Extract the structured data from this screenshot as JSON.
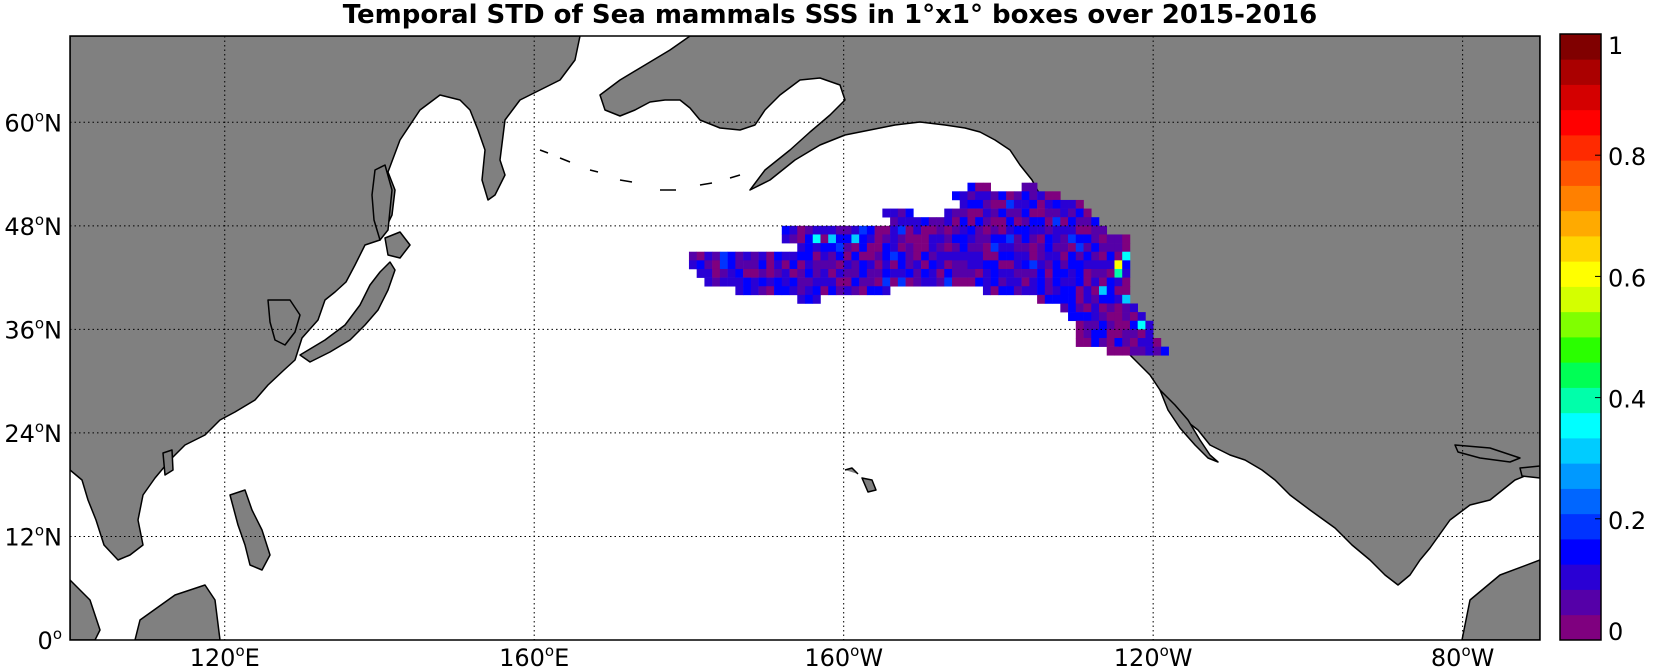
{
  "title": "Temporal STD of Sea mammals SSS in 1°x1° boxes over 2015-2016",
  "map": {
    "lon_range": [
      100,
      290
    ],
    "lat_range": [
      0,
      70
    ],
    "lat_ticks": [
      {
        "deg": "0",
        "hemi": "",
        "value": 0
      },
      {
        "deg": "12",
        "hemi": "N",
        "value": 12
      },
      {
        "deg": "24",
        "hemi": "N",
        "value": 24
      },
      {
        "deg": "36",
        "hemi": "N",
        "value": 36
      },
      {
        "deg": "48",
        "hemi": "N",
        "value": 48
      },
      {
        "deg": "60",
        "hemi": "N",
        "value": 60
      }
    ],
    "lon_ticks": [
      {
        "deg": "120",
        "hemi": "E",
        "value": 120
      },
      {
        "deg": "160",
        "hemi": "E",
        "value": 160
      },
      {
        "deg": "160",
        "hemi": "W",
        "value": 200
      },
      {
        "deg": "120",
        "hemi": "W",
        "value": 240
      },
      {
        "deg": "80",
        "hemi": "W",
        "value": 280
      }
    ],
    "land_color": "#808080",
    "grid_color": "#000000"
  },
  "colorbar": {
    "ticks": [
      "0",
      "0.2",
      "0.4",
      "0.6",
      "0.8",
      "1"
    ],
    "range": [
      0,
      1
    ],
    "colors": [
      "#7f007f",
      "#5500a8",
      "#2a00d4",
      "#0000ff",
      "#0033ff",
      "#0066ff",
      "#0099ff",
      "#00ccff",
      "#00ffff",
      "#00ffaa",
      "#00ff55",
      "#2aff00",
      "#80ff00",
      "#d4ff00",
      "#ffff00",
      "#ffd400",
      "#ffaa00",
      "#ff8000",
      "#ff5500",
      "#ff2a00",
      "#ff0000",
      "#d40000",
      "#aa0000",
      "#800000"
    ]
  },
  "std_boxes": {
    "rows": [
      {
        "lat": 52,
        "lon_ranges": [
          [
            216,
            218
          ],
          [
            223,
            224
          ]
        ]
      },
      {
        "lat": 51,
        "lon_ranges": [
          [
            214,
            227
          ]
        ]
      },
      {
        "lat": 50,
        "lon_ranges": [
          [
            215,
            230
          ]
        ]
      },
      {
        "lat": 49,
        "lon_ranges": [
          [
            205,
            208
          ],
          [
            213,
            231
          ]
        ]
      },
      {
        "lat": 48,
        "lon_ranges": [
          [
            206,
            232
          ]
        ]
      },
      {
        "lat": 47,
        "lon_ranges": [
          [
            192,
            233
          ]
        ]
      },
      {
        "lat": 46,
        "lon_ranges": [
          [
            192,
            236
          ]
        ]
      },
      {
        "lat": 45,
        "lon_ranges": [
          [
            194,
            236
          ]
        ]
      },
      {
        "lat": 44,
        "lon_ranges": [
          [
            180,
            236
          ]
        ]
      },
      {
        "lat": 43,
        "lon_ranges": [
          [
            180,
            236
          ]
        ]
      },
      {
        "lat": 42,
        "lon_ranges": [
          [
            181,
            236
          ]
        ]
      },
      {
        "lat": 41,
        "lon_ranges": [
          [
            182,
            236
          ]
        ]
      },
      {
        "lat": 40,
        "lon_ranges": [
          [
            186,
            205
          ],
          [
            218,
            236
          ]
        ]
      },
      {
        "lat": 39,
        "lon_ranges": [
          [
            194,
            196
          ],
          [
            225,
            236
          ]
        ]
      },
      {
        "lat": 38,
        "lon_ranges": [
          [
            228,
            237
          ]
        ]
      },
      {
        "lat": 37,
        "lon_ranges": [
          [
            229,
            238
          ]
        ]
      },
      {
        "lat": 36,
        "lon_ranges": [
          [
            230,
            239
          ]
        ]
      },
      {
        "lat": 35,
        "lon_ranges": [
          [
            230,
            239
          ]
        ]
      },
      {
        "lat": 34,
        "lon_ranges": [
          [
            230,
            240
          ]
        ]
      },
      {
        "lat": 33,
        "lon_ranges": [
          [
            234,
            241
          ]
        ]
      }
    ],
    "highlights": [
      {
        "lon": 235,
        "lat": 43,
        "value": 0.6
      },
      {
        "lon": 235,
        "lat": 42,
        "value": 0.38
      },
      {
        "lon": 236,
        "lat": 44,
        "value": 0.35
      },
      {
        "lon": 235,
        "lat": 47,
        "value": 0.3
      },
      {
        "lon": 238,
        "lat": 36,
        "value": 0.36
      },
      {
        "lon": 196,
        "lat": 46,
        "value": 0.35
      },
      {
        "lon": 198,
        "lat": 46,
        "value": 0.3
      },
      {
        "lon": 201,
        "lat": 46,
        "value": 0.32
      },
      {
        "lon": 233,
        "lat": 40,
        "value": 0.3
      },
      {
        "lon": 236,
        "lat": 39,
        "value": 0.33
      }
    ]
  }
}
